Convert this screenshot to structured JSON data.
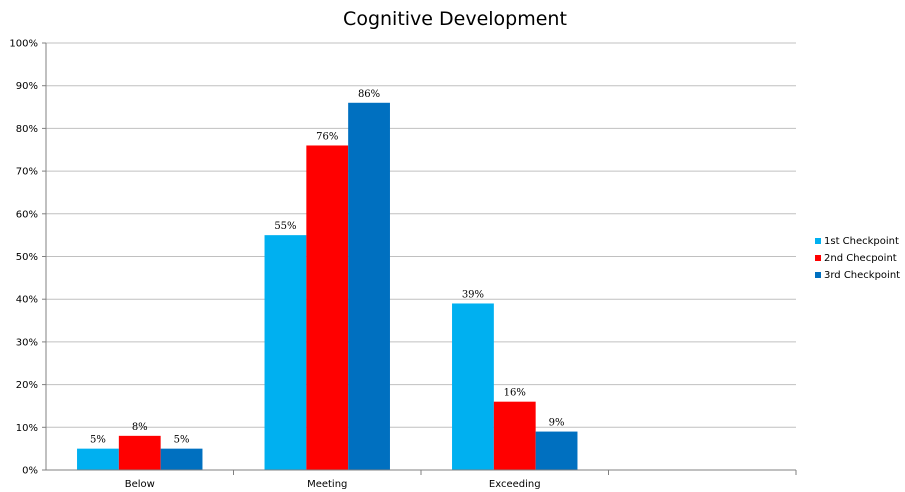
{
  "chart_data": {
    "type": "bar",
    "title": "Cognitive Development",
    "xlabel": "",
    "ylabel": "",
    "categories": [
      "Below",
      "Meeting",
      "Exceeding"
    ],
    "series": [
      {
        "name": "1st Checkpoint",
        "values": [
          5,
          55,
          39
        ],
        "color": "#00b0f0"
      },
      {
        "name": "2nd Checpoint",
        "values": [
          8,
          76,
          16
        ],
        "color": "#ff0000"
      },
      {
        "name": "3rd Checkpoint",
        "values": [
          5,
          86,
          9
        ],
        "color": "#0070c0"
      }
    ],
    "data_labels": [
      [
        "5%",
        "55%",
        "39%"
      ],
      [
        "8%",
        "76%",
        "16%"
      ],
      [
        "5%",
        "86%",
        "9%"
      ]
    ],
    "ylim": [
      0,
      100
    ],
    "yticks": [
      "0%",
      "10%",
      "20%",
      "30%",
      "40%",
      "50%",
      "60%",
      "70%",
      "80%",
      "90%",
      "100%"
    ],
    "grid": true,
    "legend_position": "right",
    "gridline_color": "#c0c0c0",
    "axis_color": "#808080"
  }
}
